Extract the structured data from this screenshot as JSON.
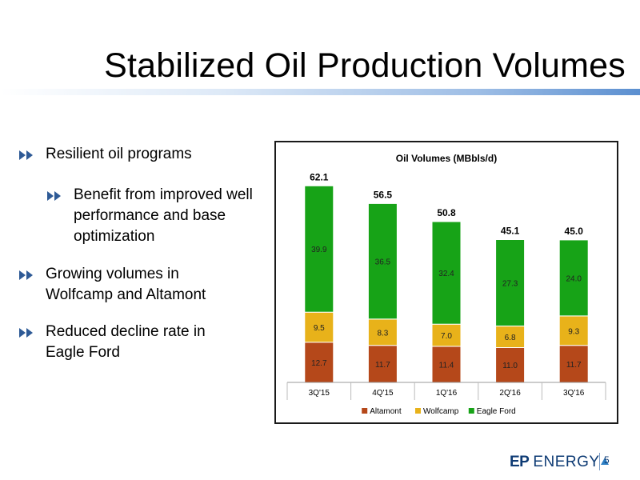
{
  "slide": {
    "title": "Stabilized Oil Production Volumes",
    "page_number": "5"
  },
  "bullets": [
    {
      "text": "Resilient oil programs",
      "level": 1
    },
    {
      "text": "Benefit from improved well performance and base optimization",
      "level": 2
    },
    {
      "text": "Growing volumes in Wolfcamp and Altamont",
      "level": 1
    },
    {
      "text": "Reduced decline rate in Eagle Ford",
      "level": 1
    }
  ],
  "logo": {
    "brand": "EP",
    "brand_rest": "ENERGY",
    "icon": "triangle-icon",
    "color": "#0e3b74"
  },
  "chart_data": {
    "type": "bar",
    "stacked": true,
    "title": "Oil Volumes (MBbls/d)",
    "categories": [
      "3Q'15",
      "4Q'15",
      "1Q'16",
      "2Q'16",
      "3Q'16"
    ],
    "series": [
      {
        "name": "Altamont",
        "color": "#b5481a",
        "values": [
          12.7,
          11.7,
          11.4,
          11.0,
          11.7
        ]
      },
      {
        "name": "Wolfcamp",
        "color": "#e8b21a",
        "values": [
          9.5,
          8.3,
          7.0,
          6.8,
          9.3
        ]
      },
      {
        "name": "Eagle Ford",
        "color": "#17a317",
        "values": [
          39.9,
          36.5,
          32.4,
          27.3,
          24.0
        ]
      }
    ],
    "totals": [
      "62.1",
      "56.5",
      "50.8",
      "45.1",
      "45.0"
    ],
    "segment_labels": [
      [
        "12.7",
        "11.7",
        "11.4",
        "11.0",
        "11.7"
      ],
      [
        "9.5",
        "8.3",
        "7.0",
        "6.8",
        "9.3"
      ],
      [
        "39.9",
        "36.5",
        "32.4",
        "27.3",
        "24.0"
      ]
    ],
    "ylim": [
      0,
      70
    ],
    "grid": false,
    "legend": "bottom"
  }
}
